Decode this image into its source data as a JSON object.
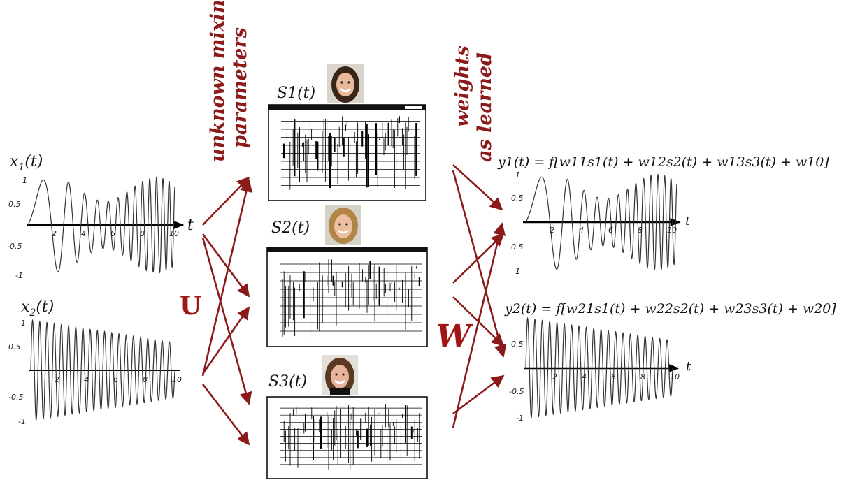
{
  "mixing_label_line1": "unknown mixing",
  "mixing_label_line2": "parameters",
  "weights_label_line1": "weights",
  "weights_label_line2": "as learned",
  "matrix_u": "U",
  "matrix_w": "W",
  "time_symbol": "t",
  "inputs": [
    {
      "label": "x1(t)",
      "base": "x",
      "sub": "1",
      "suffix": "(t)",
      "yticks": [
        "1",
        "0.5",
        "-0.5",
        "-1"
      ],
      "xticks": [
        "2",
        "4",
        "6",
        "8",
        "10"
      ]
    },
    {
      "label": "x2(t)",
      "base": "x",
      "sub": "2",
      "suffix": "(t)",
      "yticks": [
        "1",
        "0.5",
        "-0.5",
        "-1"
      ],
      "xticks": [
        "2",
        "4",
        "6",
        "8",
        "10"
      ]
    }
  ],
  "sources": [
    {
      "label": "S1(t)"
    },
    {
      "label": "S2(t)"
    },
    {
      "label": "S3(t)"
    }
  ],
  "outputs": [
    {
      "formula": "y1(t) = f[w11s1(t) + w12s2(t) + w13s3(t) + w10]",
      "yticks": [
        "1",
        "0.5",
        "0.5",
        "1"
      ],
      "xticks": [
        "2",
        "4",
        "6",
        "8",
        "10"
      ]
    },
    {
      "formula": "y2(t) = f[w21s1(t) + w22s2(t) + w23s3(t) + w20]",
      "yticks": [
        "0.5",
        "-0.5",
        "-1"
      ],
      "xticks": [
        "2",
        "4",
        "6",
        "8",
        "10"
      ]
    }
  ],
  "colors": {
    "arrow": "#8b1a1a",
    "matrix_letter": "#a01414",
    "curve": "#333333",
    "axis": "#000000"
  }
}
